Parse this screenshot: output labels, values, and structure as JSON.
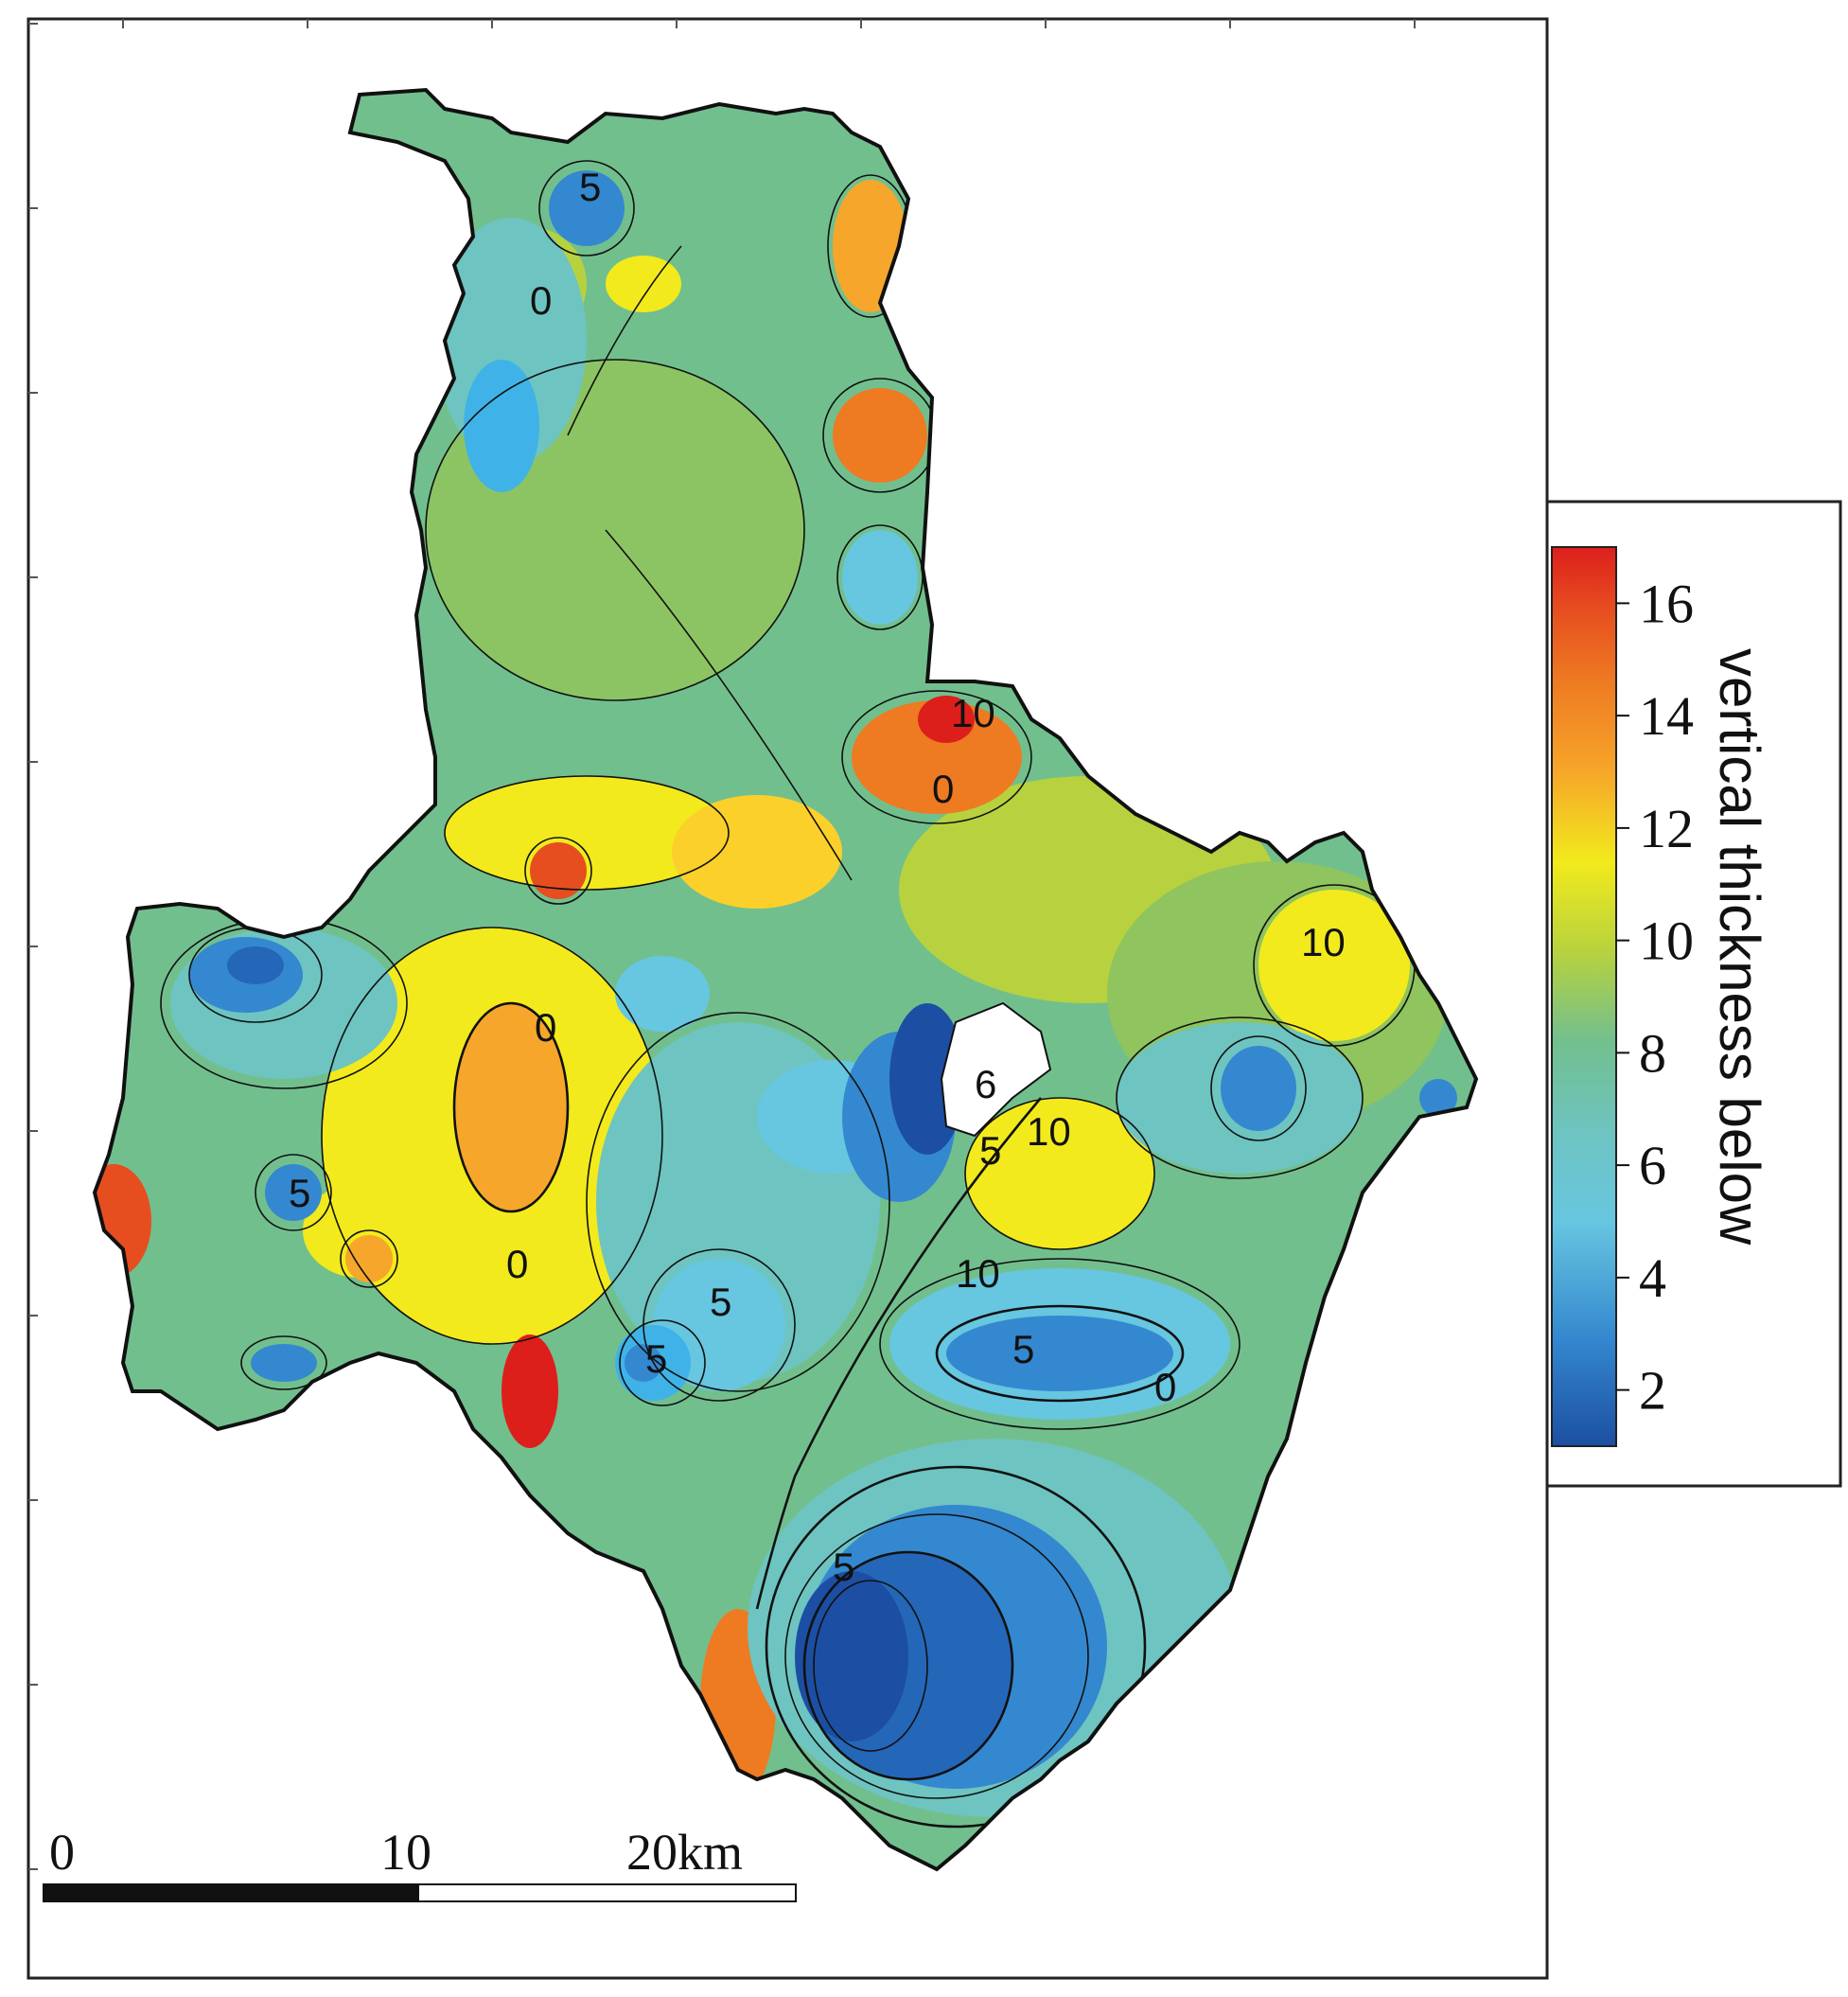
{
  "legend": {
    "title": "vertical thickness below",
    "ticks": [
      "16",
      "14",
      "12",
      "10",
      "8",
      "6",
      "4",
      "2"
    ],
    "range": [
      1,
      17
    ],
    "colors": [
      "#1c4fa3",
      "#2467b8",
      "#3488cf",
      "#3fb3e8",
      "#67c6e0",
      "#6ec4c0",
      "#72bf8e",
      "#8fc45e",
      "#b7d23e",
      "#f2ea1c",
      "#fcd02a",
      "#f6a62a",
      "#ee7a22",
      "#e64e20",
      "#dd1f1c"
    ]
  },
  "scale_bar": {
    "labels": [
      "0",
      "10",
      "20km"
    ]
  },
  "contour_labels": [
    "5",
    "10",
    "0",
    "10",
    "0",
    "5",
    "5",
    "0",
    "6",
    "10",
    "5",
    "10",
    "5",
    "0",
    "5",
    "5",
    "0"
  ]
}
